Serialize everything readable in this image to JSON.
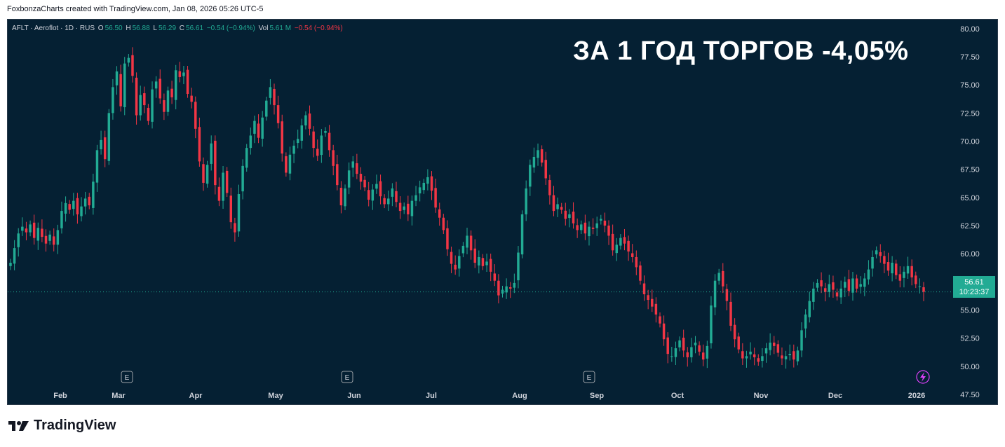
{
  "header": {
    "caption": "FoxbonzaCharts created with TradingView.com, Jan 08, 2026 05:26 UTC-5"
  },
  "legend": {
    "symbol": "AFLT · Aeroflot · 1D · RUS",
    "o_label": "O",
    "o_value": "56.50",
    "h_label": "H",
    "h_value": "56.88",
    "l_label": "L",
    "l_value": "56.29",
    "c_label": "C",
    "c_value": "56.61",
    "change": "−0.54 (−0.94%)",
    "vol_label": "Vol",
    "vol_value": "5.61 M",
    "vol_change": "−0.54 (−0.94%)"
  },
  "overlay_title": "ЗА 1 ГОД ТОРГОВ -4,05%",
  "price_label": {
    "price": "56.61",
    "countdown": "10:23:37"
  },
  "footer": {
    "brand": "TradingView"
  },
  "colors": {
    "background": "#052033",
    "up": "#22ab94",
    "down": "#f23645",
    "text": "#d1d4dc"
  },
  "earnings_markers": [
    {
      "label": "E",
      "month": "Mar"
    },
    {
      "label": "E",
      "month": "Jun"
    },
    {
      "label": "E",
      "month": "Sep"
    }
  ],
  "dividend_marker": {
    "icon": "lightning-icon",
    "month": "2026"
  },
  "chart_data": {
    "type": "candlestick",
    "title": "",
    "ylim": [
      46.5,
      80.8
    ],
    "y_ticks": [
      "80.00",
      "77.50",
      "75.00",
      "72.50",
      "70.00",
      "67.50",
      "65.00",
      "62.50",
      "60.00",
      "57.50",
      "55.00",
      "52.50",
      "50.00",
      "47.50"
    ],
    "x_ticks": [
      "Feb",
      "Mar",
      "Apr",
      "May",
      "Jun",
      "Jul",
      "Aug",
      "Sep",
      "Oct",
      "Nov",
      "Dec",
      "2026"
    ],
    "last_price": 56.61,
    "close_series": [
      59.2,
      60.5,
      61.8,
      62.4,
      61.9,
      62.6,
      61.4,
      62.3,
      61.5,
      60.9,
      61.7,
      60.8,
      62.1,
      63.8,
      64.5,
      63.9,
      64.7,
      63.5,
      64.2,
      64.9,
      64.3,
      66.4,
      69.2,
      70.1,
      68.4,
      72.5,
      74.8,
      76.2,
      73.1,
      76.9,
      77.4,
      75.8,
      72.3,
      74.1,
      73.2,
      71.8,
      74.6,
      75.3,
      73.8,
      72.6,
      74.5,
      73.9,
      76.3,
      75.7,
      76.1,
      74.2,
      73.5,
      71.1,
      68.2,
      66.3,
      67.9,
      69.8,
      66.1,
      64.7,
      67.2,
      65.4,
      62.8,
      61.9,
      65.3,
      67.8,
      69.4,
      70.5,
      71.8,
      70.3,
      72.1,
      73.6,
      74.8,
      73.2,
      71.6,
      68.9,
      67.2,
      68.8,
      69.6,
      70.2,
      71.4,
      72.3,
      71.1,
      69.4,
      68.7,
      70.5,
      70.9,
      69.2,
      67.8,
      66.1,
      64.3,
      65.8,
      67.4,
      68.2,
      67.1,
      66.4,
      65.9,
      64.8,
      65.7,
      66.2,
      65.1,
      64.4,
      64.9,
      65.8,
      64.6,
      63.8,
      64.2,
      63.5,
      64.7,
      65.2,
      65.9,
      66.3,
      66.8,
      65.6,
      64.1,
      63.2,
      62.1,
      60.4,
      59.1,
      58.6,
      59.8,
      60.7,
      61.6,
      60.3,
      59.2,
      59.7,
      58.9,
      59.3,
      58.4,
      57.6,
      56.3,
      56.8,
      57.1,
      56.9,
      57.4,
      60.1,
      63.5,
      65.8,
      67.9,
      68.6,
      69.2,
      68.1,
      66.7,
      65.2,
      63.8,
      64.4,
      63.9,
      63.1,
      63.5,
      62.7,
      62.1,
      62.6,
      61.8,
      62.4,
      62.2,
      62.7,
      63.1,
      62.5,
      61.6,
      60.3,
      60.8,
      61.4,
      60.9,
      60.2,
      59.7,
      58.8,
      57.6,
      56.4,
      55.9,
      55.3,
      54.6,
      53.8,
      52.4,
      51.1,
      50.9,
      51.6,
      52.3,
      51.4,
      50.8,
      51.7,
      52.1,
      51.3,
      50.6,
      51.8,
      55.4,
      57.6,
      58.3,
      57.1,
      55.8,
      53.6,
      52.4,
      51.5,
      50.7,
      50.9,
      51.3,
      50.8,
      50.4,
      50.9,
      51.6,
      52.1,
      51.8,
      51.2,
      50.7,
      50.9,
      51.1,
      50.6,
      51.4,
      53.2,
      54.6,
      55.8,
      56.9,
      57.4,
      57.1,
      56.6,
      57.3,
      56.8,
      56.2,
      56.9,
      57.5,
      56.7,
      57.8,
      56.9,
      57.3,
      57.8,
      58.6,
      59.7,
      60.3,
      59.8,
      59.1,
      58.5,
      59.2,
      58.1,
      57.6,
      58.4,
      58.9,
      57.9,
      57.3,
      57.1,
      56.61
    ]
  }
}
